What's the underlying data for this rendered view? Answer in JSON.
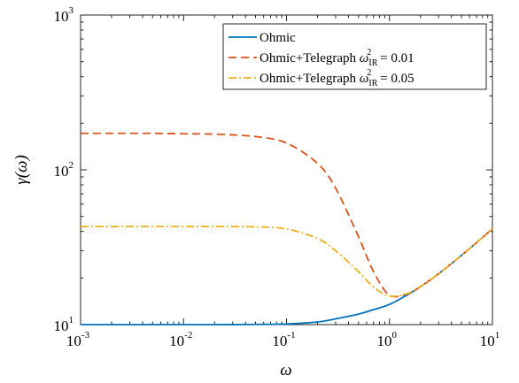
{
  "chart_data": {
    "type": "line",
    "title": "",
    "xlabel": "ω",
    "ylabel": "γ(ω)",
    "xscale": "log",
    "yscale": "log",
    "xlim": [
      0.001,
      10
    ],
    "ylim": [
      10,
      1000
    ],
    "grid": false,
    "legend_position": "top-right",
    "x_ticks": [
      {
        "base": "10",
        "exp": "-3"
      },
      {
        "base": "10",
        "exp": "-2"
      },
      {
        "base": "10",
        "exp": "-1"
      },
      {
        "base": "10",
        "exp": "0"
      },
      {
        "base": "10",
        "exp": "1"
      }
    ],
    "y_ticks": [
      {
        "base": "10",
        "exp": "1"
      },
      {
        "base": "10",
        "exp": "2"
      },
      {
        "base": "10",
        "exp": "3"
      }
    ],
    "x": [
      0.001,
      0.002,
      0.005,
      0.01,
      0.02,
      0.05,
      0.1,
      0.2,
      0.3,
      0.5,
      0.7,
      1.0,
      1.5,
      2,
      3,
      5,
      7,
      10
    ],
    "series": [
      {
        "name": "Ohmic",
        "color": "#0072BD",
        "dash": "solid",
        "values": [
          10.0,
          10.0,
          10.0,
          10.0,
          10.0,
          10.03,
          10.1,
          10.4,
          10.9,
          11.7,
          12.5,
          13.5,
          15.6,
          17.6,
          21.3,
          28.0,
          33.8,
          41.6
        ]
      },
      {
        "name": "Ohmic+Telegraph ω_IR^2 = 0.01",
        "name_parts": {
          "prefix": "Ohmic+Telegraph ",
          "symbol": "ω",
          "sub": "IR",
          "sup": "2",
          "suffix": " = 0.01"
        },
        "color": "#D95319",
        "dash": "dashed",
        "values": [
          172,
          172,
          172,
          171,
          170,
          164,
          149,
          110,
          76,
          37,
          22,
          15.5,
          15.8,
          17.6,
          21.3,
          28.0,
          33.8,
          41.6
        ]
      },
      {
        "name": "Ohmic+Telegraph ω_IR^2 = 0.05",
        "name_parts": {
          "prefix": "Ohmic+Telegraph ",
          "symbol": "ω",
          "sub": "IR",
          "sup": "2",
          "suffix": " = 0.05"
        },
        "color": "#EDB120",
        "dash": "dashdot",
        "values": [
          43,
          43,
          43,
          43,
          43,
          42.8,
          41.5,
          36,
          30,
          22,
          17.5,
          15.3,
          15.9,
          17.7,
          21.3,
          28.0,
          33.8,
          41.6
        ]
      }
    ]
  }
}
